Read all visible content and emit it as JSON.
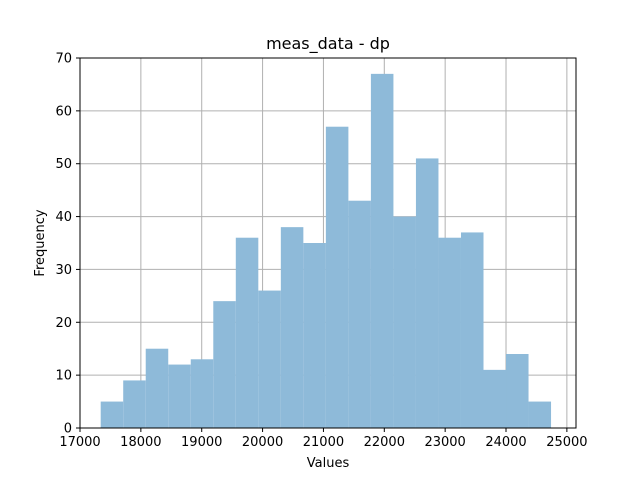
{
  "chart_data": {
    "type": "bar",
    "title": "meas_data - dp",
    "xlabel": "Values",
    "ylabel": "Frequency",
    "bar_color": "#8ebad9",
    "grid": true,
    "xlim": [
      17000,
      25150
    ],
    "ylim": [
      0,
      70
    ],
    "xticks": [
      17000,
      18000,
      19000,
      20000,
      21000,
      22000,
      23000,
      24000,
      25000
    ],
    "yticks": [
      0,
      10,
      20,
      30,
      40,
      50,
      60,
      70
    ],
    "bin_edges": [
      17340,
      17710,
      18080,
      18450,
      18820,
      19190,
      19560,
      19930,
      20300,
      20670,
      21040,
      21410,
      21780,
      22150,
      22520,
      22890,
      23260,
      23630,
      24000,
      24370,
      24740
    ],
    "values": [
      5,
      9,
      15,
      12,
      13,
      24,
      36,
      26,
      38,
      35,
      57,
      43,
      67,
      40,
      51,
      36,
      37,
      11,
      14,
      5
    ]
  }
}
